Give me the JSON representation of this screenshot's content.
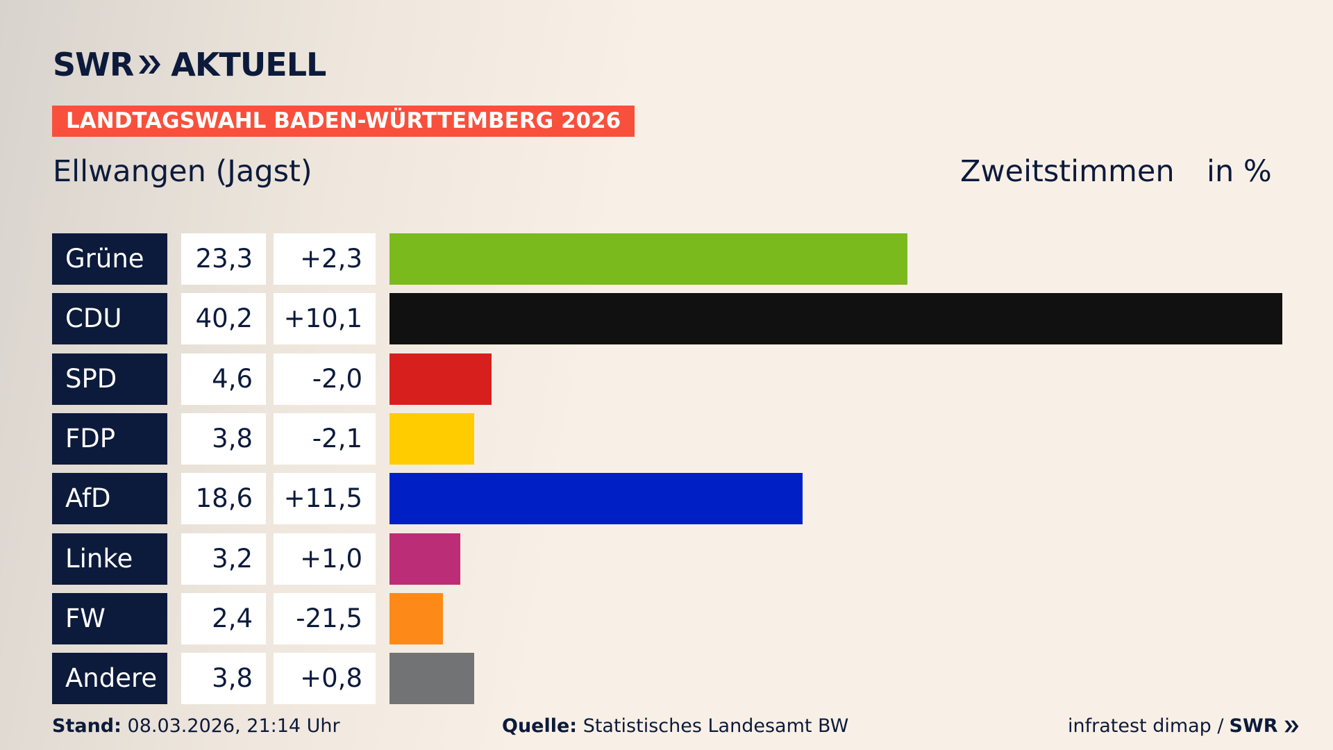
{
  "chart_data": {
    "type": "bar",
    "logo": "SWR",
    "logo_suffix": "AKTUELL",
    "title": "LANDTAGSWAHL BADEN-WÜRTTEMBERG 2026",
    "subtitle": "Ellwangen (Jagst)",
    "measure": "Zweitstimmen",
    "unit": "in %",
    "categories": [
      "Grüne",
      "CDU",
      "SPD",
      "FDP",
      "AfD",
      "Linke",
      "FW",
      "Andere"
    ],
    "values": [
      23.3,
      40.2,
      4.6,
      3.8,
      18.6,
      3.2,
      2.4,
      3.8
    ],
    "value_labels": [
      "23,3",
      "40,2",
      "4,6",
      "3,8",
      "18,6",
      "3,2",
      "2,4",
      "3,8"
    ],
    "changes": [
      2.3,
      10.1,
      -2.0,
      -2.1,
      11.5,
      1.0,
      -21.5,
      0.8
    ],
    "change_labels": [
      "+2,3",
      "+10,1",
      "-2,0",
      "-2,1",
      "+11,5",
      "+1,0",
      "-21,5",
      "+0,8"
    ],
    "colors": [
      "#7aba1d",
      "#111111",
      "#d71f1d",
      "#ffcc00",
      "#0020c6",
      "#bb2d76",
      "#fd8a18",
      "#727374"
    ],
    "footer": {
      "stand_label": "Stand:",
      "stand": "08.03.2026, 21:14 Uhr",
      "source_label": "Quelle:",
      "source": "Statistisches Landesamt BW",
      "credit": "infratest dimap /",
      "credit_logo": "SWR"
    }
  }
}
